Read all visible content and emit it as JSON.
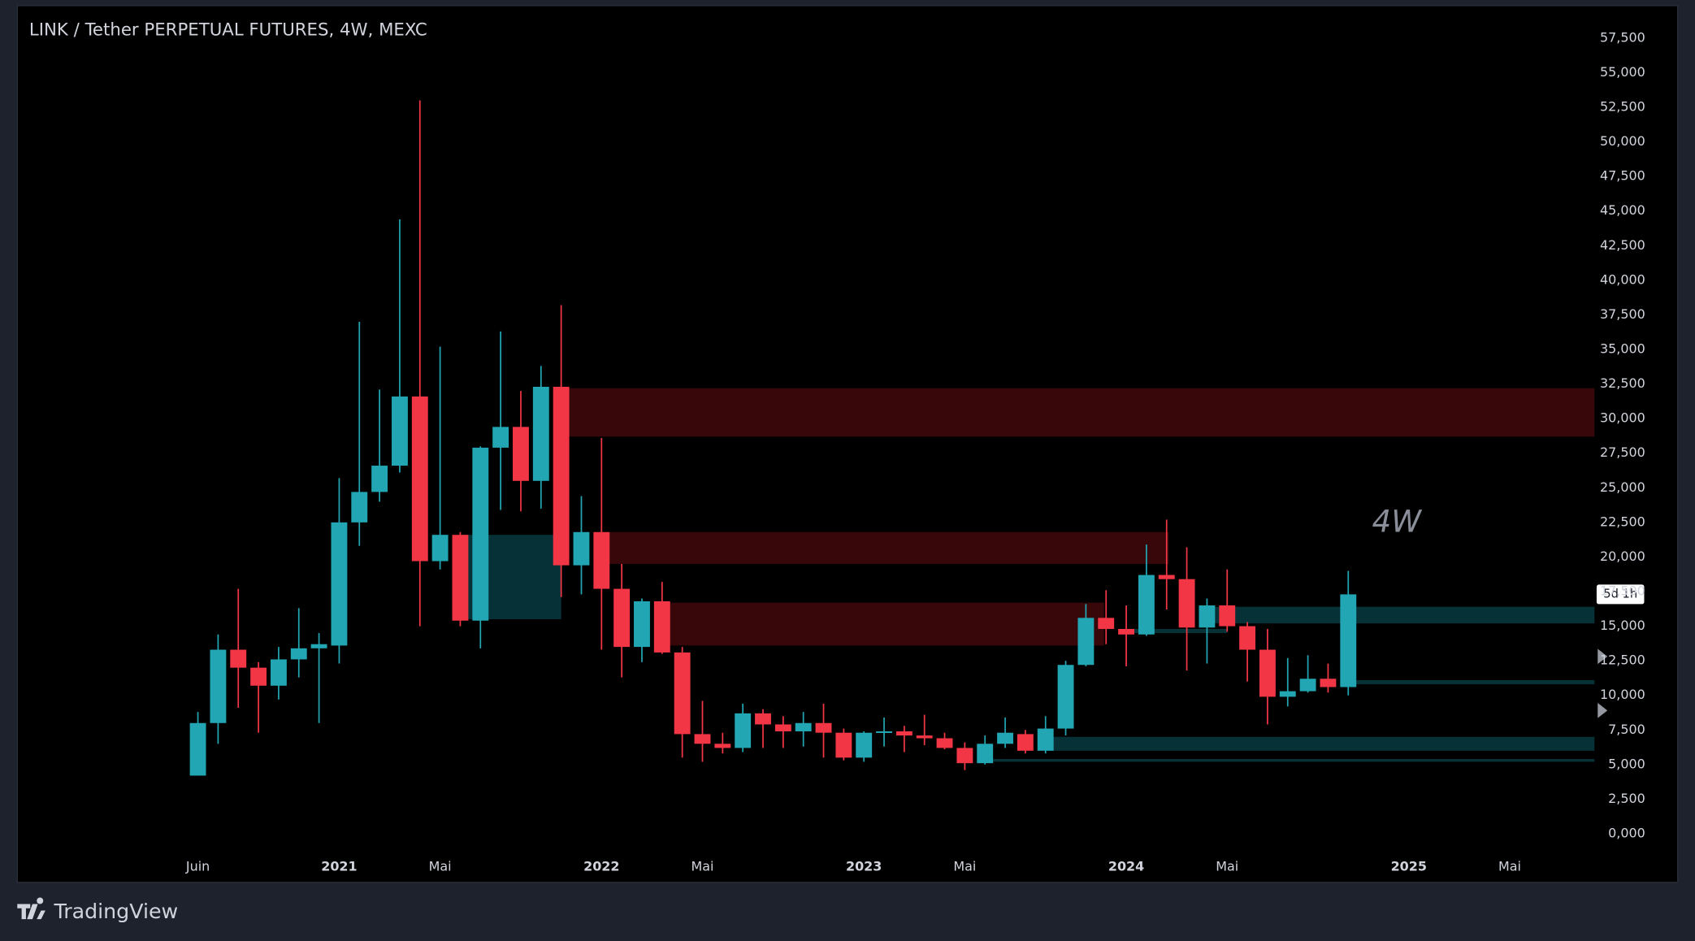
{
  "chart_data": {
    "type": "candlestick",
    "title": "LINK / Tether PERPETUAL FUTURES, 4W, MEXC",
    "brand": "TradingView",
    "annotation": "4W",
    "countdown": "5d 1h",
    "up_color": "#22a6b3",
    "down_color": "#f23645",
    "open": [
      4200,
      8000,
      13300,
      12000,
      10700,
      12600,
      13400,
      13600,
      22500,
      24700,
      26600,
      31600,
      19700,
      21600,
      15400,
      27900,
      29400,
      25500,
      32300,
      19400,
      21800,
      17700,
      13500,
      16800,
      13100,
      7200,
      6500,
      6200,
      8700,
      7900,
      7400,
      8000,
      7300,
      5500,
      7300,
      7400,
      7100,
      6900,
      6200,
      5100,
      6500,
      7200,
      6000,
      7600,
      12200,
      15600,
      14800,
      14400,
      18700,
      18400,
      14900,
      16500,
      15000,
      13300,
      9900,
      10300,
      11200,
      10600
    ],
    "high": [
      8800,
      14400,
      17700,
      12400,
      13500,
      16300,
      14500,
      25700,
      37000,
      32100,
      44400,
      53000,
      35200,
      21800,
      28000,
      36300,
      32000,
      33800,
      38200,
      24400,
      28600,
      19500,
      17000,
      18200,
      13500,
      9600,
      7300,
      9400,
      9000,
      8500,
      8800,
      9400,
      7600,
      7400,
      8400,
      7800,
      8600,
      7300,
      6600,
      7100,
      8400,
      7500,
      8500,
      12500,
      16600,
      17600,
      16500,
      20900,
      22700,
      20700,
      17000,
      19100,
      15300,
      14800,
      12700,
      12900,
      12300,
      19000
    ],
    "low": [
      4200,
      6500,
      9100,
      7300,
      9700,
      11300,
      8000,
      12300,
      20800,
      24000,
      26100,
      15000,
      19100,
      15000,
      13400,
      23400,
      23300,
      23500,
      17100,
      17300,
      13300,
      11300,
      12400,
      13000,
      5500,
      5200,
      5800,
      5900,
      6200,
      6200,
      6300,
      5500,
      5300,
      5200,
      6300,
      5900,
      6400,
      6100,
      4600,
      5000,
      6200,
      5800,
      5800,
      7100,
      12100,
      13700,
      12100,
      14300,
      16200,
      11800,
      12300,
      14600,
      11000,
      7900,
      9200,
      10200,
      10200,
      10000
    ],
    "close": [
      8000,
      13300,
      12000,
      10700,
      12600,
      13400,
      13700,
      22500,
      24700,
      26600,
      31600,
      19700,
      21600,
      15400,
      27900,
      29400,
      25500,
      32300,
      19400,
      21800,
      17700,
      13500,
      16800,
      13100,
      7200,
      6500,
      6200,
      8700,
      7900,
      7400,
      8000,
      7300,
      5500,
      7300,
      7400,
      7100,
      6900,
      6200,
      5100,
      6500,
      7300,
      6000,
      7600,
      12200,
      15600,
      14800,
      14400,
      18700,
      18400,
      14900,
      16500,
      15000,
      13300,
      9900,
      10300,
      11200,
      10600,
      17300
    ],
    "zones": [
      {
        "from": 18,
        "to": 69.2,
        "top": 32200,
        "bottom": 28700,
        "color": "#3a070b"
      },
      {
        "from": 19.6,
        "to": 48.1,
        "top": 21800,
        "bottom": 19500,
        "color": "#3a070b"
      },
      {
        "from": 23,
        "to": 44.9,
        "top": 16700,
        "bottom": 13600,
        "color": "#3a070b"
      },
      {
        "from": 13,
        "to": 18,
        "top": 21600,
        "bottom": 15500,
        "color": "#06353a"
      },
      {
        "from": 50,
        "to": 69.2,
        "top": 16400,
        "bottom": 15200,
        "color": "#06353a"
      },
      {
        "from": 46,
        "to": 51,
        "top": 14800,
        "bottom": 14500,
        "color": "#06353a"
      },
      {
        "from": 57,
        "to": 69.2,
        "top": 11100,
        "bottom": 10800,
        "color": "#06353a"
      },
      {
        "from": 42,
        "to": 69.2,
        "top": 7000,
        "bottom": 6000,
        "color": "#06353a"
      },
      {
        "from": 39,
        "to": 69.2,
        "top": 5400,
        "bottom": 5200,
        "color": "#06353a"
      }
    ],
    "xlim": [
      -8.95,
      69.2
    ],
    "xticks": [
      {
        "value": 0,
        "label": "Juin"
      },
      {
        "value": 7,
        "label": "2021"
      },
      {
        "value": 12,
        "label": "Mai"
      },
      {
        "value": 20,
        "label": "2022"
      },
      {
        "value": 25,
        "label": "Mai"
      },
      {
        "value": 33,
        "label": "2023"
      },
      {
        "value": 38,
        "label": "Mai"
      },
      {
        "value": 46,
        "label": "2024"
      },
      {
        "value": 51,
        "label": "Mai"
      },
      {
        "value": 60,
        "label": "2025"
      },
      {
        "value": 65,
        "label": "Mai"
      }
    ],
    "ylim": [
      0,
      57500
    ],
    "yticks": [
      {
        "value": 0,
        "label": "0,000"
      },
      {
        "value": 2500,
        "label": "2,500"
      },
      {
        "value": 5000,
        "label": "5,000"
      },
      {
        "value": 7500,
        "label": "7,500"
      },
      {
        "value": 10000,
        "label": "10,000"
      },
      {
        "value": 12500,
        "label": "12,500"
      },
      {
        "value": 15000,
        "label": "15,000"
      },
      {
        "value": 17500,
        "label": "17,500"
      },
      {
        "value": 20000,
        "label": "20,000"
      },
      {
        "value": 22500,
        "label": "22,500"
      },
      {
        "value": 25000,
        "label": "25,000"
      },
      {
        "value": 27500,
        "label": "27,500"
      },
      {
        "value": 30000,
        "label": "30,000"
      },
      {
        "value": 32500,
        "label": "32,500"
      },
      {
        "value": 35000,
        "label": "35,000"
      },
      {
        "value": 37500,
        "label": "37,500"
      },
      {
        "value": 40000,
        "label": "40,000"
      },
      {
        "value": 42500,
        "label": "42,500"
      },
      {
        "value": 45000,
        "label": "45,000"
      },
      {
        "value": 47500,
        "label": "47,500"
      },
      {
        "value": 50000,
        "label": "50,000"
      },
      {
        "value": 52500,
        "label": "52,500"
      },
      {
        "value": 55000,
        "label": "55,000"
      },
      {
        "value": 57500,
        "label": "57,500"
      }
    ],
    "grid": false
  }
}
